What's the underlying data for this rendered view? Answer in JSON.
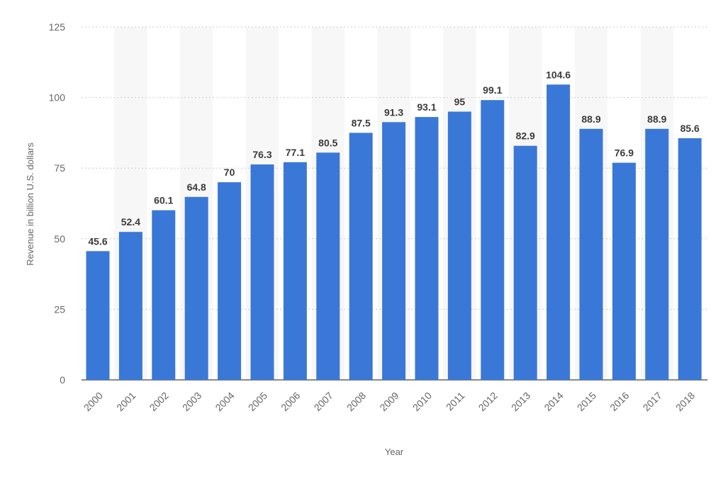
{
  "chart_data": {
    "type": "bar",
    "categories": [
      "2000",
      "2001",
      "2002",
      "2003",
      "2004",
      "2005",
      "2006",
      "2007",
      "2008",
      "2009",
      "2010",
      "2011",
      "2012",
      "2013",
      "2014",
      "2015",
      "2016",
      "2017",
      "2018"
    ],
    "values": [
      45.6,
      52.4,
      60.1,
      64.8,
      70,
      76.3,
      77.1,
      80.5,
      87.5,
      91.3,
      93.1,
      95,
      99.1,
      82.9,
      104.6,
      88.9,
      76.9,
      88.9,
      85.6
    ],
    "value_labels": [
      "45.6",
      "52.4",
      "60.1",
      "64.8",
      "70",
      "76.3",
      "77.1",
      "80.5",
      "87.5",
      "91.3",
      "93.1",
      "95",
      "99.1",
      "82.9",
      "104.6",
      "88.9",
      "76.9",
      "88.9",
      "85.6"
    ],
    "title": "",
    "xlabel": "Year",
    "ylabel": "Revenue in billion U.S. dollars",
    "ylim": [
      0,
      125
    ],
    "yticks": [
      "0",
      "25",
      "50",
      "75",
      "100",
      "125"
    ],
    "grid": true,
    "legend": "none",
    "colors": {
      "bar": "#3a78d8",
      "band": "#f7f7f7",
      "grid": "#cccccc",
      "tick_text": "#666666",
      "label_text": "#3b3b3b"
    }
  }
}
